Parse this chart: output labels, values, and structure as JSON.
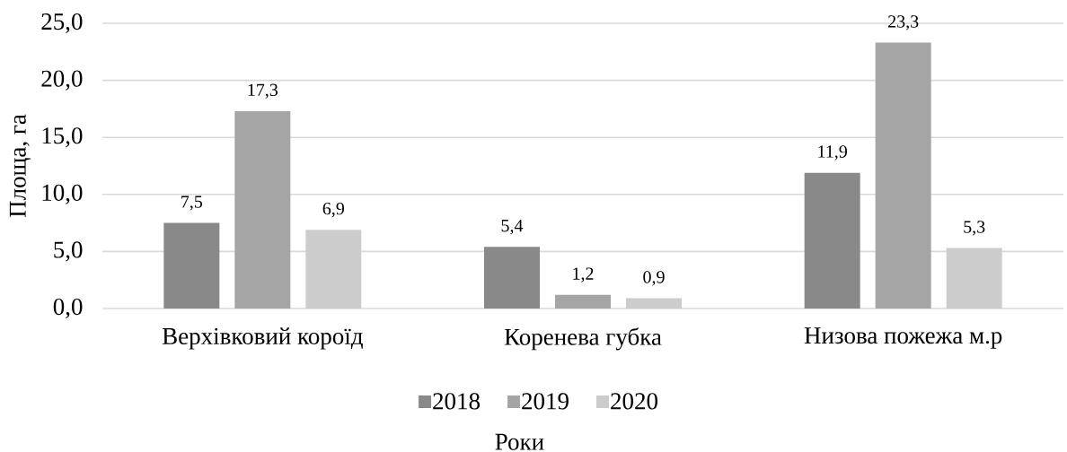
{
  "chart_data": {
    "type": "bar",
    "ylabel": "Площа, га",
    "xlabel": "Роки",
    "categories": [
      "Верхівковий короїд",
      "Коренева губка",
      "Низова пожежа м.р"
    ],
    "series": [
      {
        "name": "2018",
        "color": "#898989",
        "values": [
          7.5,
          5.4,
          11.9
        ],
        "value_labels": [
          "7,5",
          "5,4",
          "11,9"
        ]
      },
      {
        "name": "2019",
        "color": "#a5a5a5",
        "values": [
          17.3,
          1.2,
          23.3
        ],
        "value_labels": [
          "17,3",
          "1,2",
          "23,3"
        ]
      },
      {
        "name": "2020",
        "color": "#cccccc",
        "values": [
          6.9,
          0.9,
          5.3
        ],
        "value_labels": [
          "6,9",
          "0,9",
          "5,3"
        ]
      }
    ],
    "ylim": [
      0,
      25
    ],
    "yticks": [
      {
        "value": 0,
        "label": "0,0"
      },
      {
        "value": 5,
        "label": "5,0"
      },
      {
        "value": 10,
        "label": "10,0"
      },
      {
        "value": 15,
        "label": "15,0"
      },
      {
        "value": 20,
        "label": "20,0"
      },
      {
        "value": 25,
        "label": "25,0"
      }
    ],
    "grid": "y",
    "legend": "bottom"
  }
}
